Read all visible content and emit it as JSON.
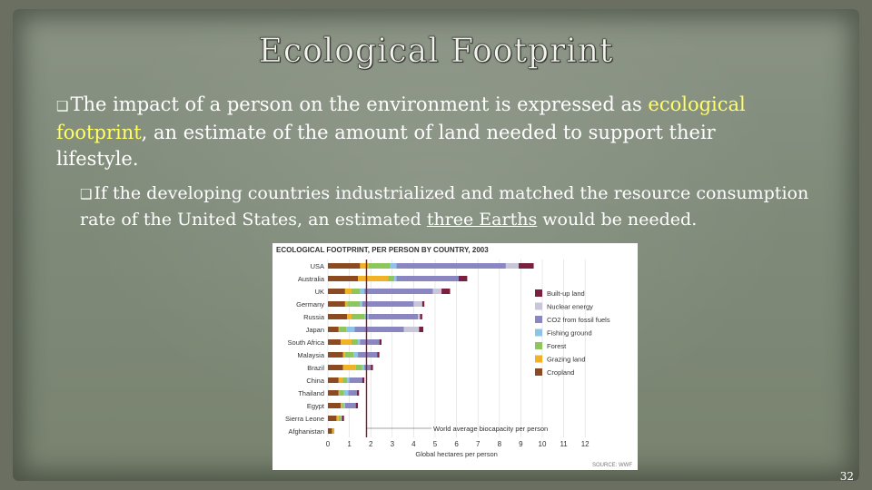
{
  "slide": {
    "title": "Ecological Footprint",
    "bullet1": {
      "text_before": "The impact of a person on the environment is expressed as ",
      "highlight": "ecological footprint",
      "text_after": ", an estimate of the amount of land needed to support their lifestyle."
    },
    "bullet2": {
      "text_before": "If the developing countries industrialized and matched the resource consumption rate of the United States, an estimated ",
      "underlined": "three Earths",
      "text_after": " would be needed."
    },
    "page_number": "32"
  },
  "colors": {
    "highlight": "#ffff66",
    "built_up": "#7a1f3d",
    "nuclear": "#c9c6d9",
    "co2": "#8a86c2",
    "fishing": "#8cc4e8",
    "forest": "#8dc65a",
    "grazing": "#f2b227",
    "cropland": "#8b4a1f"
  },
  "chart_data": {
    "type": "bar",
    "orientation": "horizontal",
    "stacked": true,
    "title": "ECOLOGICAL FOOTPRINT, PER PERSON BY COUNTRY, 2003",
    "xlabel": "Global hectares per person",
    "ylabel": "",
    "xlim": [
      0,
      12
    ],
    "xticks": [
      "0",
      "1",
      "2",
      "3",
      "4",
      "5",
      "6",
      "7",
      "8",
      "9",
      "10",
      "11",
      "12"
    ],
    "categories": [
      "USA",
      "Australia",
      "UK",
      "Germany",
      "Russia",
      "Japan",
      "South Africa",
      "Malaysia",
      "Brazil",
      "China",
      "Thailand",
      "Egypt",
      "Sierra Leone",
      "Afghanistan"
    ],
    "series": [
      {
        "name": "Cropland",
        "color_key": "cropland",
        "values": [
          1.5,
          1.4,
          0.8,
          0.8,
          0.9,
          0.5,
          0.6,
          0.7,
          0.7,
          0.5,
          0.5,
          0.6,
          0.4,
          0.2
        ]
      },
      {
        "name": "Grazing land",
        "color_key": "grazing",
        "values": [
          0.4,
          1.4,
          0.3,
          0.1,
          0.2,
          0.05,
          0.5,
          0.1,
          0.6,
          0.2,
          0.05,
          0.05,
          0.1,
          0.05
        ]
      },
      {
        "name": "Forest",
        "color_key": "forest",
        "values": [
          1.0,
          0.3,
          0.4,
          0.6,
          0.6,
          0.3,
          0.3,
          0.4,
          0.3,
          0.2,
          0.2,
          0.1,
          0.1,
          0.05
        ]
      },
      {
        "name": "Fishing ground",
        "color_key": "fishing",
        "values": [
          0.3,
          0.1,
          0.2,
          0.1,
          0.2,
          0.4,
          0.1,
          0.2,
          0.1,
          0.1,
          0.2,
          0.05,
          0.05,
          0.0
        ]
      },
      {
        "name": "CO2 from fossil fuels",
        "color_key": "co2",
        "values": [
          5.1,
          2.9,
          3.2,
          2.4,
          2.3,
          2.3,
          0.9,
          0.9,
          0.3,
          0.6,
          0.4,
          0.5,
          0.0,
          0.0
        ]
      },
      {
        "name": "Nuclear energy",
        "color_key": "nuclear",
        "values": [
          0.6,
          0.0,
          0.4,
          0.4,
          0.1,
          0.7,
          0.0,
          0.0,
          0.0,
          0.0,
          0.0,
          0.0,
          0.0,
          0.0
        ]
      },
      {
        "name": "Built-up land",
        "color_key": "built_up",
        "values": [
          0.7,
          0.4,
          0.4,
          0.1,
          0.1,
          0.2,
          0.1,
          0.1,
          0.1,
          0.1,
          0.1,
          0.1,
          0.1,
          0.0
        ]
      }
    ],
    "legend": [
      "Built-up land",
      "Nuclear energy",
      "CO2 from fossil fuels",
      "Fishing ground",
      "Forest",
      "Grazing land",
      "Cropland"
    ],
    "reference_line": {
      "value": 1.8,
      "label": "World average biocapacity per person"
    },
    "source": "SOURCE: WWF",
    "grid": true,
    "legend_position": "right"
  }
}
